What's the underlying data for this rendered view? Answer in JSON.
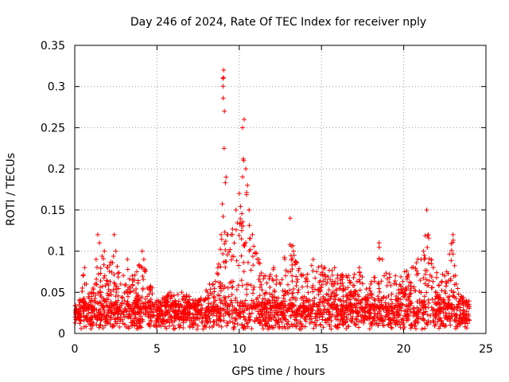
{
  "chart_data": {
    "type": "scatter",
    "title": "Day 246 of 2024, Rate Of TEC Index for receiver nply",
    "xlabel": "GPS time / hours",
    "ylabel": "ROTI / TECUs",
    "xlim": [
      0,
      25
    ],
    "ylim": [
      0,
      0.35
    ],
    "grid": true,
    "marker": "+",
    "color": "#ff0000",
    "x_ticks": [
      "0",
      "5",
      "10",
      "15",
      "20",
      "25"
    ],
    "y_ticks": [
      "0",
      "0.05",
      "0.1",
      "0.15",
      "0.2",
      "0.25",
      "0.3",
      "0.35"
    ],
    "x_tick_values": [
      0,
      5,
      10,
      15,
      20,
      25
    ],
    "y_tick_values": [
      0,
      0.05,
      0.1,
      0.15,
      0.2,
      0.25,
      0.3,
      0.35
    ],
    "series": [
      {
        "name": "ROTI",
        "points": [
          [
            0.1,
            0.03
          ],
          [
            0.3,
            0.04
          ],
          [
            0.5,
            0.07
          ],
          [
            0.6,
            0.08
          ],
          [
            0.7,
            0.06
          ],
          [
            1.0,
            0.05
          ],
          [
            1.3,
            0.09
          ],
          [
            1.4,
            0.12
          ],
          [
            1.5,
            0.11
          ],
          [
            1.8,
            0.1
          ],
          [
            2.0,
            0.08
          ],
          [
            2.4,
            0.12
          ],
          [
            2.5,
            0.1
          ],
          [
            2.8,
            0.06
          ],
          [
            3.2,
            0.09
          ],
          [
            3.5,
            0.07
          ],
          [
            4.1,
            0.1
          ],
          [
            4.2,
            0.09
          ],
          [
            5.0,
            0.04
          ],
          [
            5.8,
            0.05
          ],
          [
            6.5,
            0.05
          ],
          [
            7.5,
            0.04
          ],
          [
            8.2,
            0.06
          ],
          [
            8.7,
            0.08
          ],
          [
            8.9,
            0.12
          ],
          [
            9.0,
            0.31
          ],
          [
            9.05,
            0.32
          ],
          [
            9.1,
            0.27
          ],
          [
            9.2,
            0.19
          ],
          [
            9.3,
            0.12
          ],
          [
            9.5,
            0.12
          ],
          [
            9.8,
            0.15
          ],
          [
            10.0,
            0.17
          ],
          [
            10.2,
            0.25
          ],
          [
            10.3,
            0.26
          ],
          [
            10.4,
            0.2
          ],
          [
            10.5,
            0.18
          ],
          [
            10.6,
            0.15
          ],
          [
            10.8,
            0.12
          ],
          [
            11.2,
            0.09
          ],
          [
            11.6,
            0.07
          ],
          [
            12.1,
            0.08
          ],
          [
            12.5,
            0.06
          ],
          [
            13.1,
            0.14
          ],
          [
            13.3,
            0.1
          ],
          [
            13.8,
            0.07
          ],
          [
            14.5,
            0.09
          ],
          [
            15.2,
            0.08
          ],
          [
            15.8,
            0.08
          ],
          [
            16.5,
            0.07
          ],
          [
            17.3,
            0.08
          ],
          [
            18.0,
            0.06
          ],
          [
            18.5,
            0.11
          ],
          [
            18.7,
            0.09
          ],
          [
            19.5,
            0.07
          ],
          [
            20.5,
            0.08
          ],
          [
            21.2,
            0.1
          ],
          [
            21.4,
            0.15
          ],
          [
            21.5,
            0.12
          ],
          [
            21.8,
            0.08
          ],
          [
            22.5,
            0.07
          ],
          [
            23.0,
            0.12
          ],
          [
            23.2,
            0.06
          ],
          [
            23.8,
            0.04
          ]
        ]
      }
    ]
  }
}
